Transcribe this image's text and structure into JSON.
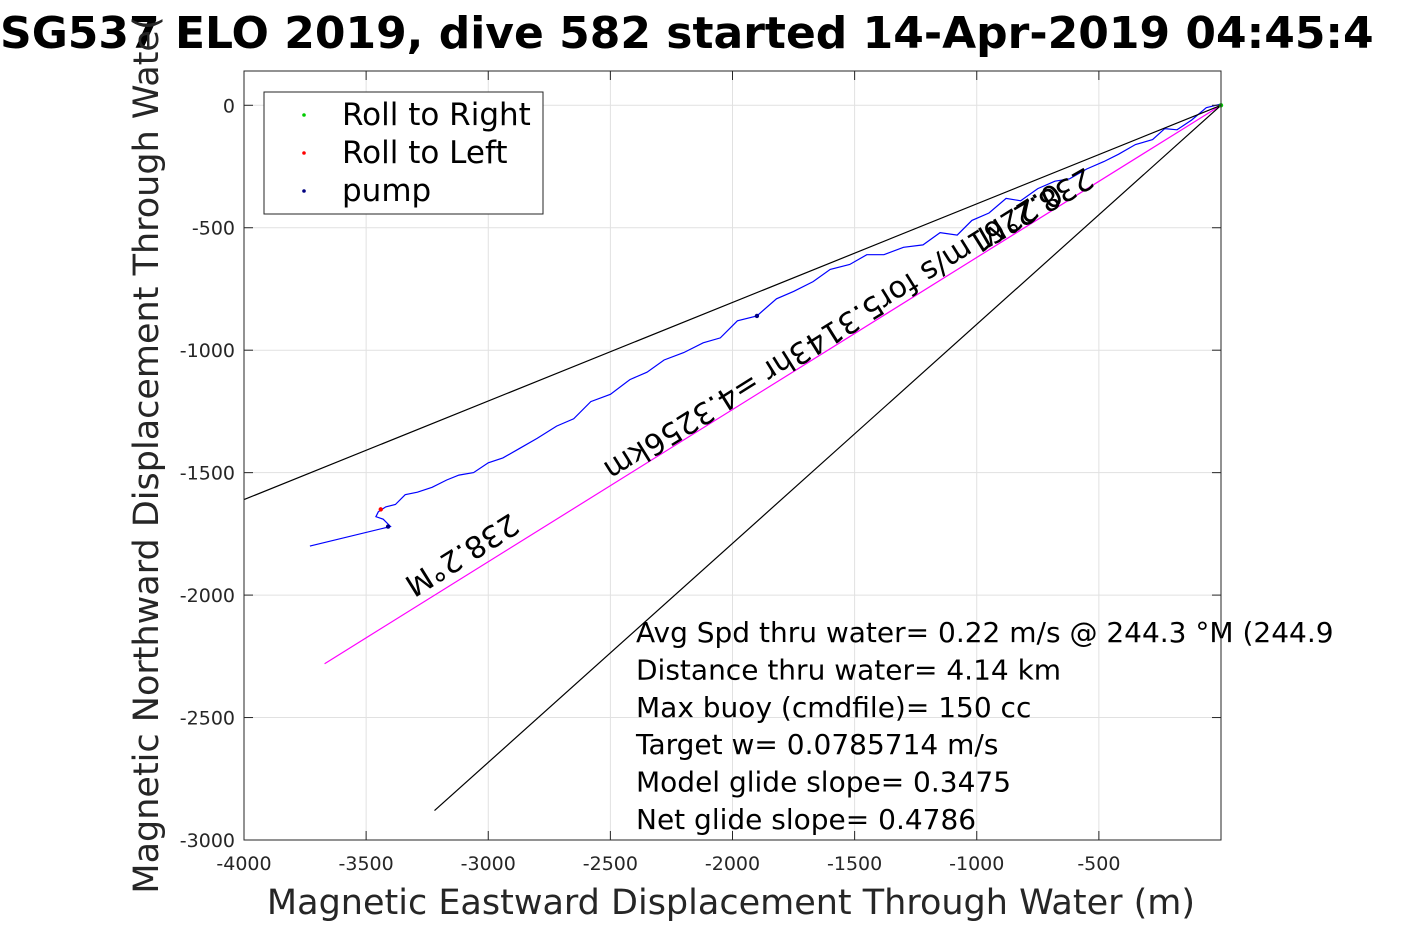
{
  "chart_data": {
    "type": "line",
    "title": "SG537 ELO 2019, dive 582 started 14-Apr-2019 04:45:4",
    "xlabel": "Magnetic Eastward Displacement Through Water (m)",
    "ylabel": "Magnetic Northward Displacement Through Wate(",
    "xlim": [
      -4000,
      0
    ],
    "ylim": [
      -3000,
      140
    ],
    "xticks": [
      -4000,
      -3500,
      -3000,
      -2500,
      -2000,
      -1500,
      -1000,
      -500
    ],
    "xtick_labels": [
      "-4000",
      "-3500",
      "-3000",
      "-2500",
      "-2000",
      "-1500",
      "-1000",
      "-500"
    ],
    "yticks": [
      0,
      -500,
      -1000,
      -1500,
      -2000,
      -2500,
      -3000
    ],
    "ytick_labels": [
      "0",
      "-500",
      "-1000",
      "-1500",
      "-2000",
      "-2500",
      "-3000"
    ],
    "grid": true,
    "legend_position": "top-left",
    "legend": [
      {
        "label": "Roll to Right",
        "color": "#00cc00"
      },
      {
        "label": "Roll to Left",
        "color": "#ff0000"
      },
      {
        "label": "pump",
        "color": "#000080"
      }
    ],
    "series": [
      {
        "color": "#0000ff",
        "x": [
          0,
          -60,
          -120,
          -180,
          -230,
          -280,
          -350,
          -420,
          -480,
          -550,
          -620,
          -680,
          -750,
          -820,
          -880,
          -950,
          -1020,
          -1080,
          -1150,
          -1220,
          -1300,
          -1380,
          -1450,
          -1520,
          -1600,
          -1670,
          -1750,
          -1820,
          -1900,
          -1980,
          -2050,
          -2120,
          -2200,
          -2280,
          -2350,
          -2420,
          -2500,
          -2580,
          -2650,
          -2720,
          -2800,
          -2870,
          -2940,
          -3000,
          -3060,
          -3120,
          -3170,
          -3230,
          -3290,
          -3340,
          -3380,
          -3420,
          -3450,
          -3460,
          -3430,
          -3400,
          -3730
        ],
        "y": [
          5,
          -10,
          -60,
          -100,
          -95,
          -140,
          -160,
          -200,
          -230,
          -260,
          -300,
          -310,
          -340,
          -390,
          -380,
          -440,
          -470,
          -530,
          -520,
          -570,
          -580,
          -610,
          -610,
          -650,
          -670,
          -720,
          -760,
          -790,
          -860,
          -880,
          -950,
          -970,
          -1010,
          -1040,
          -1090,
          -1120,
          -1180,
          -1210,
          -1280,
          -1310,
          -1360,
          -1400,
          -1440,
          -1460,
          -1500,
          -1510,
          -1530,
          -1560,
          -1580,
          -1590,
          -1630,
          -1640,
          -1660,
          -1680,
          -1690,
          -1720,
          -1800
        ]
      },
      {
        "color": "#ff00ff",
        "x": [
          0,
          -3670
        ],
        "y": [
          0,
          -2280
        ]
      },
      {
        "color": "#000000",
        "x": [
          0,
          -4000
        ],
        "y": [
          0,
          -1610
        ]
      },
      {
        "color": "#000000",
        "x": [
          0,
          -3220
        ],
        "y": [
          0,
          -2880
        ]
      }
    ],
    "points": [
      {
        "series": "Roll to Right",
        "color": "#00cc00",
        "x": 0,
        "y": 0
      },
      {
        "series": "Roll to Left",
        "color": "#ff0000",
        "x": -3440,
        "y": -1650
      },
      {
        "series": "pump",
        "color": "#000080",
        "x": -1900,
        "y": -860
      },
      {
        "series": "pump",
        "color": "#000080",
        "x": -3410,
        "y": -1720
      }
    ],
    "rotated_labels": [
      {
        "text": "238.2°M",
        "x": -3130,
        "y": -1800,
        "angle": 148
      },
      {
        "text": "238.2°M",
        "x": -780,
        "y": -380,
        "angle": 150
      },
      {
        "text": "0.2261m/s for5.3143hr =4.3256km",
        "x": -1610,
        "y": -890,
        "angle": 148
      }
    ],
    "annotations": [
      "Avg Spd thru water=  0.22 m/s @ 244.3 °M (244.9",
      "Distance thru water=  4.14 km",
      "Max buoy (cmdfile)= 150 cc",
      "Target w= 0.0785714 m/s",
      "Model glide slope= 0.3475",
      "Net glide slope= 0.4786"
    ]
  }
}
